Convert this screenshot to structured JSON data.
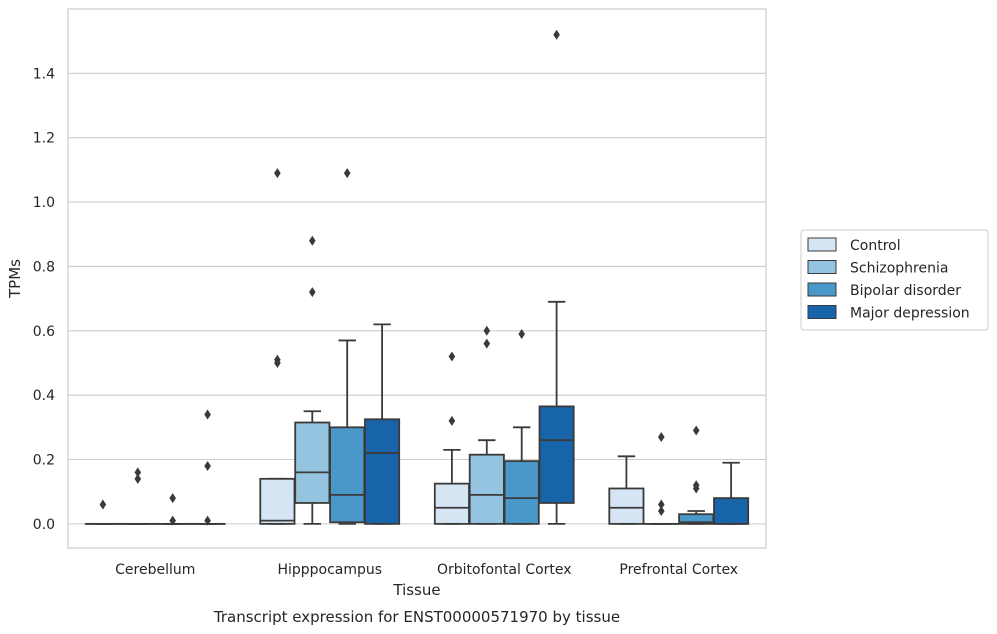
{
  "chart_data": {
    "type": "box",
    "title": "",
    "caption": "Transcript expression for ENST00000571970 by tissue",
    "xlabel": "Tissue",
    "ylabel": "TPMs",
    "ylim": [
      -0.075,
      1.6
    ],
    "yticks": [
      0.0,
      0.2,
      0.4,
      0.6,
      0.8,
      1.0,
      1.2,
      1.4
    ],
    "ytick_labels": [
      "0.0",
      "0.2",
      "0.4",
      "0.6",
      "0.8",
      "1.0",
      "1.2",
      "1.4"
    ],
    "grid": "horizontal",
    "legend_position": "right",
    "categories": [
      "Cerebellum",
      "Hipppocampus",
      "Orbitofontal Cortex",
      "Prefrontal Cortex"
    ],
    "series": [
      {
        "name": "Control",
        "color": "#d6e5f4",
        "boxes": [
          {
            "min": 0,
            "q1": 0,
            "median": 0,
            "q3": 0,
            "max": 0,
            "outliers": [
              0.06
            ]
          },
          {
            "min": 0,
            "q1": 0,
            "median": 0.01,
            "q3": 0.14,
            "max": 0.14,
            "outliers": [
              0.5,
              0.51,
              1.09
            ]
          },
          {
            "min": 0,
            "q1": 0,
            "median": 0.05,
            "q3": 0.125,
            "max": 0.23,
            "outliers": [
              0.32,
              0.52
            ]
          },
          {
            "min": 0,
            "q1": 0,
            "median": 0.05,
            "q3": 0.11,
            "max": 0.21,
            "outliers": []
          }
        ]
      },
      {
        "name": "Schizophrenia",
        "color": "#94c4df",
        "boxes": [
          {
            "min": 0,
            "q1": 0,
            "median": 0,
            "q3": 0,
            "max": 0,
            "outliers": [
              0.14,
              0.16
            ]
          },
          {
            "min": 0,
            "q1": 0.065,
            "median": 0.16,
            "q3": 0.315,
            "max": 0.35,
            "outliers": [
              0.72,
              0.88
            ]
          },
          {
            "min": 0,
            "q1": 0,
            "median": 0.09,
            "q3": 0.215,
            "max": 0.26,
            "outliers": [
              0.56,
              0.6
            ]
          },
          {
            "min": 0,
            "q1": 0,
            "median": 0,
            "q3": 0,
            "max": 0,
            "outliers": [
              0.04,
              0.06,
              0.27
            ]
          }
        ]
      },
      {
        "name": "Bipolar disorder",
        "color": "#4a98c9",
        "boxes": [
          {
            "min": 0,
            "q1": 0,
            "median": 0,
            "q3": 0,
            "max": 0,
            "outliers": [
              0.01,
              0.08
            ]
          },
          {
            "min": 0,
            "q1": 0.005,
            "median": 0.09,
            "q3": 0.3,
            "max": 0.57,
            "outliers": [
              1.09
            ]
          },
          {
            "min": 0,
            "q1": 0,
            "median": 0.08,
            "q3": 0.195,
            "max": 0.3,
            "outliers": [
              0.59
            ]
          },
          {
            "min": 0,
            "q1": 0,
            "median": 0.005,
            "q3": 0.03,
            "max": 0.04,
            "outliers": [
              0.11,
              0.12,
              0.29
            ]
          }
        ]
      },
      {
        "name": "Major depression",
        "color": "#1764ab",
        "boxes": [
          {
            "min": 0,
            "q1": 0,
            "median": 0,
            "q3": 0,
            "max": 0,
            "outliers": [
              0.01,
              0.18,
              0.34
            ]
          },
          {
            "min": 0,
            "q1": 0,
            "median": 0.22,
            "q3": 0.325,
            "max": 0.62,
            "outliers": []
          },
          {
            "min": 0,
            "q1": 0.065,
            "median": 0.26,
            "q3": 0.365,
            "max": 0.69,
            "outliers": [
              1.52
            ]
          },
          {
            "min": 0,
            "q1": 0,
            "median": 0,
            "q3": 0.08,
            "max": 0.19,
            "outliers": []
          }
        ]
      }
    ]
  }
}
